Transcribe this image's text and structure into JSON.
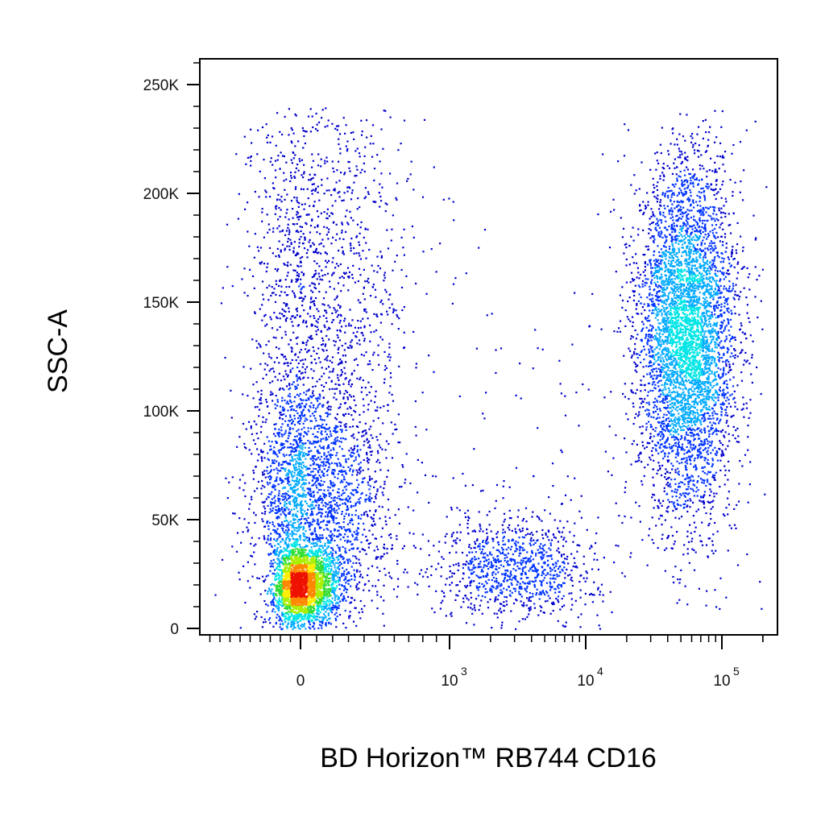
{
  "chart_data": {
    "type": "scatter",
    "title": "",
    "xlabel": "BD Horizon™ RB744 CD16",
    "ylabel": "SSC-A",
    "x_scale": "biexponential",
    "xlim": [
      -1000,
      262144
    ],
    "ylim": [
      0,
      262144
    ],
    "x_ticks": [
      {
        "value": 0,
        "label": "0",
        "exp": ""
      },
      {
        "value": 1000,
        "label": "10",
        "exp": "3"
      },
      {
        "value": 10000,
        "label": "10",
        "exp": "4"
      },
      {
        "value": 100000,
        "label": "10",
        "exp": "5"
      }
    ],
    "y_ticks": [
      {
        "value": 0,
        "label": "0"
      },
      {
        "value": 50000,
        "label": "50K"
      },
      {
        "value": 100000,
        "label": "100K"
      },
      {
        "value": 150000,
        "label": "150K"
      },
      {
        "value": 200000,
        "label": "200K"
      },
      {
        "value": 250000,
        "label": "250K"
      }
    ],
    "color_map": "density: blue (low) → cyan → green → yellow → red (high)",
    "density_colors": [
      "#0000cc",
      "#0033ff",
      "#00aaff",
      "#00e5e5",
      "#33dd33",
      "#aaee00",
      "#ffee00",
      "#ff8800",
      "#ee1100"
    ],
    "grid": false,
    "legend": "none",
    "populations": [
      {
        "x_center": 0,
        "x_spread": 120,
        "y_center": 20000,
        "y_spread": 9000,
        "count": 2600
      },
      {
        "x_center": 50,
        "x_spread": 250,
        "y_center": 60000,
        "y_spread": 30000,
        "count": 2500
      },
      {
        "x_center": 100,
        "x_spread": 300,
        "y_center": 165000,
        "y_spread": 45000,
        "count": 1300
      },
      {
        "x_center": 3000,
        "x_spread": 0.3,
        "y_center": 28000,
        "y_spread": 12000,
        "count": 1000
      },
      {
        "x_center": 55000,
        "x_spread": 0.18,
        "y_center": 135000,
        "y_spread": 40000,
        "count": 4800
      },
      {
        "x_center": 6000,
        "x_spread": 1.2,
        "y_center": 70000,
        "y_spread": 55000,
        "count": 220
      }
    ]
  }
}
